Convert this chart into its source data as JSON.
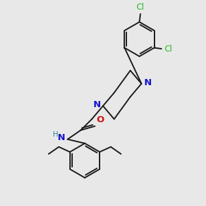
{
  "background_color": "#e8e8e8",
  "bond_color": "#1a1a1a",
  "N_color": "#1414cc",
  "O_color": "#cc1414",
  "Cl_color": "#22bb22",
  "H_color": "#228888",
  "figsize": [
    3.0,
    3.0
  ],
  "dpi": 100,
  "xlim": [
    0,
    10
  ],
  "ylim": [
    0,
    10
  ]
}
